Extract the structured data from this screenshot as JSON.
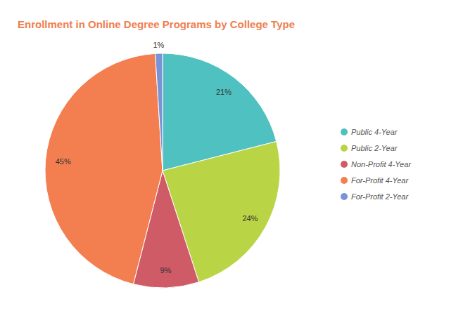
{
  "chart_data": {
    "type": "pie",
    "title": "Enrollment in Online Degree Programs by College Type",
    "categories": [
      "Public 4-Year",
      "Public 2-Year",
      "Non-Profit 4-Year",
      "For-Profit 4-Year",
      "For-Profit 2-Year"
    ],
    "values": [
      21,
      24,
      9,
      45,
      1
    ],
    "value_labels": [
      "21%",
      "24%",
      "9%",
      "45%",
      "1%"
    ],
    "colors": [
      "#4fc1c0",
      "#b9d444",
      "#cf5b66",
      "#f37e4f",
      "#7b93d4"
    ],
    "data_labels": true,
    "legend": "right"
  }
}
